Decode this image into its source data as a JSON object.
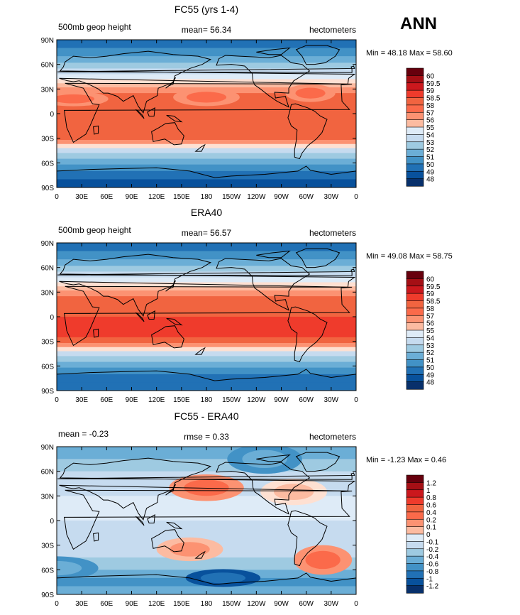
{
  "season": "ANN",
  "panels": [
    {
      "title": "FC55 (yrs 1-4)",
      "left_label": "500mb geop height",
      "center_label": "mean=  56.34",
      "right_label": "hectometers",
      "minmax": "Min =  48.18 Max =  58.60",
      "colorbar": [
        "60",
        "59.5",
        "59",
        "58.5",
        "58",
        "57",
        "56",
        "55",
        "54",
        "53",
        "52",
        "51",
        "50",
        "49",
        "48"
      ],
      "colors": [
        "#67000d",
        "#a50f15",
        "#cb181d",
        "#ef3b2c",
        "#f16440",
        "#fb6a4a",
        "#fc9272",
        "#fcbba1",
        "#fee0d2",
        "#deebf7",
        "#c6dbef",
        "#9ecae1",
        "#6baed6",
        "#4292c6",
        "#2171b5",
        "#08519c",
        "#08306b"
      ]
    },
    {
      "title": "ERA40",
      "left_label": "500mb geop height",
      "center_label": "mean=  56.57",
      "right_label": "hectometers",
      "minmax": "Min =  49.08 Max =  58.75",
      "colorbar": [
        "60",
        "59.5",
        "59",
        "58.5",
        "58",
        "57",
        "56",
        "55",
        "54",
        "53",
        "52",
        "51",
        "50",
        "49",
        "48"
      ],
      "colors": [
        "#67000d",
        "#a50f15",
        "#cb181d",
        "#ef3b2c",
        "#f16440",
        "#fb6a4a",
        "#fc9272",
        "#fcbba1",
        "#fee0d2",
        "#deebf7",
        "#c6dbef",
        "#9ecae1",
        "#6baed6",
        "#4292c6",
        "#2171b5",
        "#08519c",
        "#08306b"
      ]
    },
    {
      "title": "FC55 - ERA40",
      "left_label": "mean =   -0.23",
      "center_label": "rmse =    0.33",
      "right_label": "hectometers",
      "minmax": "Min =  -1.23 Max =    0.46",
      "colorbar": [
        "1.2",
        "1",
        "0.8",
        "0.6",
        "0.4",
        "0.2",
        "0.1",
        "0",
        "-0.1",
        "-0.2",
        "-0.4",
        "-0.6",
        "-0.8",
        "-1",
        "-1.2"
      ],
      "colors": [
        "#67000d",
        "#a50f15",
        "#cb181d",
        "#ef3b2c",
        "#f16440",
        "#fb6a4a",
        "#fc9272",
        "#fcbba1",
        "#fee0d2",
        "#deebf7",
        "#c6dbef",
        "#9ecae1",
        "#6baed6",
        "#4292c6",
        "#2171b5",
        "#08519c",
        "#08306b"
      ]
    }
  ],
  "chart_data": [
    {
      "type": "heatmap",
      "title": "FC55 (yrs 1-4)",
      "variable": "500mb geop height",
      "units": "hectometers",
      "mean": 56.34,
      "min": 48.18,
      "max": 58.6,
      "levels": [
        48,
        49,
        50,
        51,
        52,
        53,
        54,
        55,
        56,
        57,
        58,
        58.5,
        59,
        59.5,
        60
      ],
      "x_ticks": [
        "0",
        "30E",
        "60E",
        "90E",
        "120E",
        "150E",
        "180",
        "150W",
        "120W",
        "90W",
        "60W",
        "30W",
        "0"
      ],
      "y_ticks": [
        "90N",
        "60N",
        "30N",
        "0",
        "30S",
        "60S",
        "90S"
      ],
      "xlim": [
        0,
        360
      ],
      "ylim": [
        -90,
        90
      ]
    },
    {
      "type": "heatmap",
      "title": "ERA40",
      "variable": "500mb geop height",
      "units": "hectometers",
      "mean": 56.57,
      "min": 49.08,
      "max": 58.75,
      "levels": [
        48,
        49,
        50,
        51,
        52,
        53,
        54,
        55,
        56,
        57,
        58,
        58.5,
        59,
        59.5,
        60
      ],
      "x_ticks": [
        "0",
        "30E",
        "60E",
        "90E",
        "120E",
        "150E",
        "180",
        "150W",
        "120W",
        "90W",
        "60W",
        "30W",
        "0"
      ],
      "y_ticks": [
        "90N",
        "60N",
        "30N",
        "0",
        "30S",
        "60S",
        "90S"
      ],
      "xlim": [
        0,
        360
      ],
      "ylim": [
        -90,
        90
      ]
    },
    {
      "type": "heatmap",
      "title": "FC55 - ERA40",
      "units": "hectometers",
      "mean": -0.23,
      "rmse": 0.33,
      "min": -1.23,
      "max": 0.46,
      "levels": [
        -1.2,
        -1,
        -0.8,
        -0.6,
        -0.4,
        -0.2,
        -0.1,
        0,
        0.1,
        0.2,
        0.4,
        0.6,
        0.8,
        1,
        1.2
      ],
      "x_ticks": [
        "0",
        "30E",
        "60E",
        "90E",
        "120E",
        "150E",
        "180",
        "150W",
        "120W",
        "90W",
        "60W",
        "30W",
        "0"
      ],
      "y_ticks": [
        "90N",
        "60N",
        "30N",
        "0",
        "30S",
        "60S",
        "90S"
      ],
      "xlim": [
        0,
        360
      ],
      "ylim": [
        -90,
        90
      ]
    }
  ]
}
